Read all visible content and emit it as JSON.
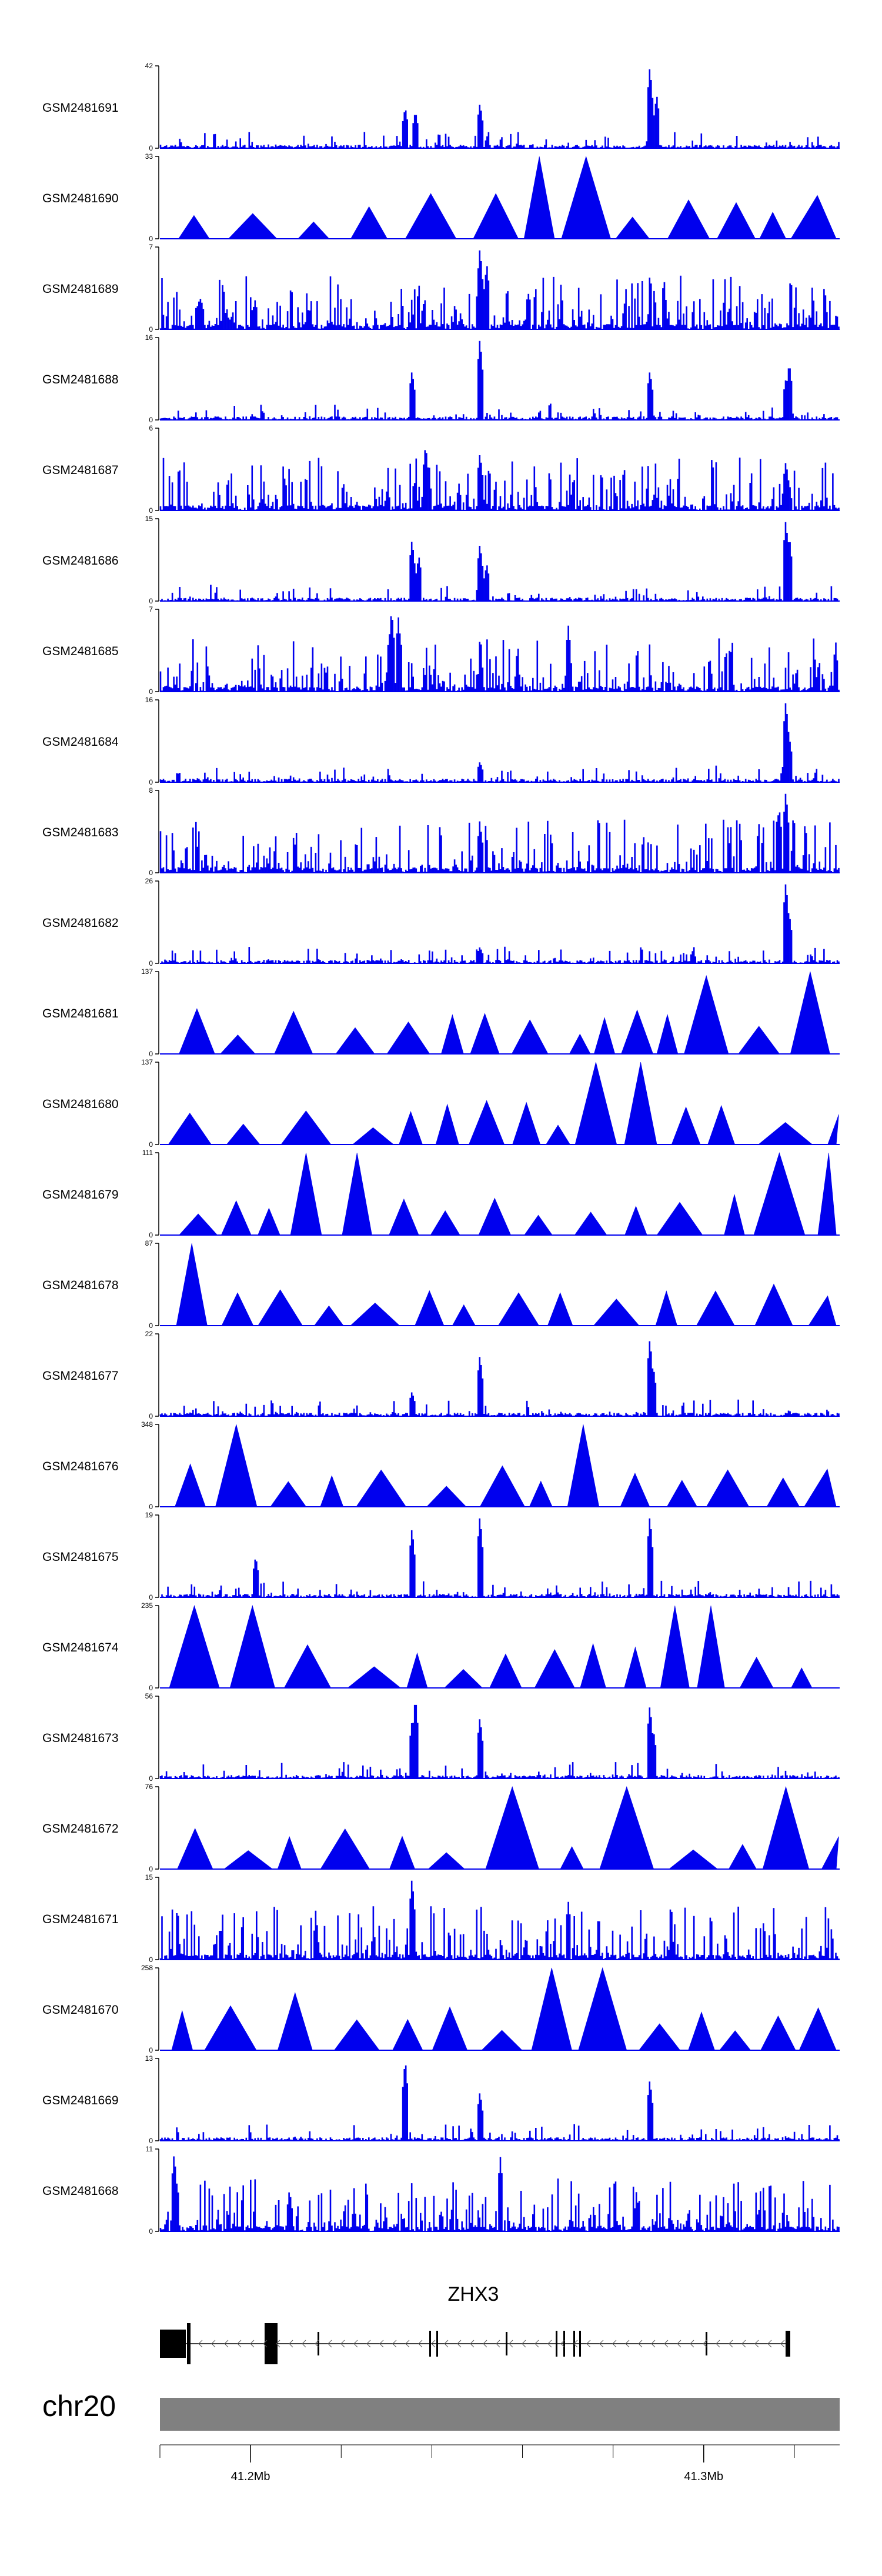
{
  "colors": {
    "signal": "#0000ee",
    "axis": "#000000",
    "gene": "#000000",
    "chrom_bar": "#808080",
    "background": "#ffffff"
  },
  "chart_data": {
    "type": "genome-browser-coverage",
    "x_axis": {
      "range_mb": [
        41.18,
        41.33
      ],
      "tick_labels": [
        {
          "label": "41.2Mb",
          "value": 41.2
        },
        {
          "label": "41.3Mb",
          "value": 41.3
        }
      ],
      "minor_ticks_mb": [
        41.18,
        41.2,
        41.22,
        41.24,
        41.26,
        41.28,
        41.3,
        41.32
      ]
    },
    "tracks": [
      {
        "name": "GSM2481691",
        "ymax": "42",
        "style": "spiky",
        "peaks": [
          {
            "x": 0.36,
            "h": 0.5
          },
          {
            "x": 0.375,
            "h": 0.45
          },
          {
            "x": 0.47,
            "h": 0.55
          },
          {
            "x": 0.72,
            "h": 1.0
          },
          {
            "x": 0.73,
            "h": 0.65
          }
        ]
      },
      {
        "name": "GSM2481690",
        "ymax": "33",
        "style": "tri",
        "peaks": [
          {
            "x": 0.58,
            "h": 1.0
          },
          {
            "x": 0.6,
            "h": 0.6
          },
          {
            "x": 0.47,
            "h": 0.55
          }
        ]
      },
      {
        "name": "GSM2481689",
        "ymax": "7",
        "style": "dense",
        "peaks": [
          {
            "x": 0.47,
            "h": 1.0
          },
          {
            "x": 0.48,
            "h": 0.8
          }
        ]
      },
      {
        "name": "GSM2481688",
        "ymax": "16",
        "style": "spiky",
        "peaks": [
          {
            "x": 0.37,
            "h": 0.6
          },
          {
            "x": 0.47,
            "h": 1.0
          },
          {
            "x": 0.72,
            "h": 0.6
          },
          {
            "x": 0.92,
            "h": 0.5
          },
          {
            "x": 0.925,
            "h": 0.7
          }
        ]
      },
      {
        "name": "GSM2481687",
        "ymax": "6",
        "style": "dense",
        "peaks": [
          {
            "x": 0.39,
            "h": 0.8
          },
          {
            "x": 0.47,
            "h": 0.7
          },
          {
            "x": 0.92,
            "h": 0.6
          }
        ]
      },
      {
        "name": "GSM2481686",
        "ymax": "15",
        "style": "spiky",
        "peaks": [
          {
            "x": 0.37,
            "h": 0.75
          },
          {
            "x": 0.38,
            "h": 0.55
          },
          {
            "x": 0.47,
            "h": 0.7
          },
          {
            "x": 0.48,
            "h": 0.45
          },
          {
            "x": 0.92,
            "h": 1.0
          },
          {
            "x": 0.925,
            "h": 0.8
          }
        ]
      },
      {
        "name": "GSM2481685",
        "ymax": "7",
        "style": "dense",
        "peaks": [
          {
            "x": 0.34,
            "h": 1.0
          },
          {
            "x": 0.35,
            "h": 0.9
          },
          {
            "x": 0.6,
            "h": 0.8
          }
        ]
      },
      {
        "name": "GSM2481684",
        "ymax": "16",
        "style": "spiky",
        "peaks": [
          {
            "x": 0.47,
            "h": 0.25
          },
          {
            "x": 0.92,
            "h": 1.0
          },
          {
            "x": 0.925,
            "h": 0.55
          }
        ]
      },
      {
        "name": "GSM2481683",
        "ymax": "8",
        "style": "dense",
        "peaks": [
          {
            "x": 0.92,
            "h": 1.0
          },
          {
            "x": 0.91,
            "h": 0.8
          },
          {
            "x": 0.47,
            "h": 0.6
          }
        ]
      },
      {
        "name": "GSM2481682",
        "ymax": "26",
        "style": "spiky",
        "peaks": [
          {
            "x": 0.47,
            "h": 0.2
          },
          {
            "x": 0.92,
            "h": 1.0
          },
          {
            "x": 0.925,
            "h": 0.6
          }
        ]
      },
      {
        "name": "GSM2481681",
        "ymax": "137",
        "style": "tri",
        "peaks": [
          {
            "x": 0.78,
            "h": 0.95
          },
          {
            "x": 0.965,
            "h": 1.0
          },
          {
            "x": 0.995,
            "h": 0.5
          }
        ]
      },
      {
        "name": "GSM2481680",
        "ymax": "137",
        "style": "tri",
        "peaks": [
          {
            "x": 0.66,
            "h": 0.9
          },
          {
            "x": 0.665,
            "h": 1.0
          },
          {
            "x": 0.55,
            "h": 0.5
          }
        ]
      },
      {
        "name": "GSM2481679",
        "ymax": "111",
        "style": "tri",
        "peaks": [
          {
            "x": 0.26,
            "h": 1.0
          },
          {
            "x": 0.97,
            "h": 1.0
          },
          {
            "x": 0.7,
            "h": 0.35
          }
        ]
      },
      {
        "name": "GSM2481678",
        "ymax": "87",
        "style": "tri",
        "peaks": [
          {
            "x": 0.06,
            "h": 1.0
          },
          {
            "x": 0.58,
            "h": 0.4
          }
        ]
      },
      {
        "name": "GSM2481677",
        "ymax": "22",
        "style": "spiky",
        "peaks": [
          {
            "x": 0.37,
            "h": 0.3
          },
          {
            "x": 0.47,
            "h": 0.75
          },
          {
            "x": 0.72,
            "h": 0.95
          },
          {
            "x": 0.725,
            "h": 0.6
          }
        ]
      },
      {
        "name": "GSM2481676",
        "ymax": "348",
        "style": "tri",
        "peaks": [
          {
            "x": 0.13,
            "h": 1.0
          },
          {
            "x": 0.6,
            "h": 1.0
          }
        ]
      },
      {
        "name": "GSM2481675",
        "ymax": "19",
        "style": "spiky",
        "peaks": [
          {
            "x": 0.14,
            "h": 0.5
          },
          {
            "x": 0.37,
            "h": 0.85
          },
          {
            "x": 0.47,
            "h": 1.0
          },
          {
            "x": 0.72,
            "h": 1.0
          }
        ]
      },
      {
        "name": "GSM2481674",
        "ymax": "235",
        "style": "tri",
        "peaks": [
          {
            "x": 0.1,
            "h": 1.0
          },
          {
            "x": 0.12,
            "h": 1.0
          },
          {
            "x": 0.8,
            "h": 1.0
          }
        ]
      },
      {
        "name": "GSM2481673",
        "ymax": "56",
        "style": "spiky",
        "peaks": [
          {
            "x": 0.37,
            "h": 0.7
          },
          {
            "x": 0.375,
            "h": 1.0
          },
          {
            "x": 0.47,
            "h": 0.75
          },
          {
            "x": 0.72,
            "h": 0.9
          },
          {
            "x": 0.725,
            "h": 0.6
          }
        ]
      },
      {
        "name": "GSM2481672",
        "ymax": "76",
        "style": "tri",
        "peaks": [
          {
            "x": 0.55,
            "h": 1.0
          },
          {
            "x": 0.7,
            "h": 1.0
          },
          {
            "x": 0.9,
            "h": 1.0
          }
        ]
      },
      {
        "name": "GSM2481671",
        "ymax": "15",
        "style": "dense",
        "peaks": [
          {
            "x": 0.37,
            "h": 1.0
          },
          {
            "x": 0.6,
            "h": 0.7
          }
        ]
      },
      {
        "name": "GSM2481670",
        "ymax": "258",
        "style": "tri",
        "peaks": [
          {
            "x": 0.2,
            "h": 0.7
          },
          {
            "x": 0.6,
            "h": 1.0
          }
        ]
      },
      {
        "name": "GSM2481669",
        "ymax": "13",
        "style": "spiky",
        "peaks": [
          {
            "x": 0.36,
            "h": 1.0
          },
          {
            "x": 0.47,
            "h": 0.6
          },
          {
            "x": 0.72,
            "h": 0.75
          }
        ]
      },
      {
        "name": "GSM2481668",
        "ymax": "11",
        "style": "dense",
        "peaks": [
          {
            "x": 0.02,
            "h": 0.95
          },
          {
            "x": 0.5,
            "h": 0.9
          }
        ]
      }
    ],
    "gene": {
      "name": "ZHX3",
      "strand": "-"
    },
    "chromosome": {
      "name": "chr20"
    }
  }
}
